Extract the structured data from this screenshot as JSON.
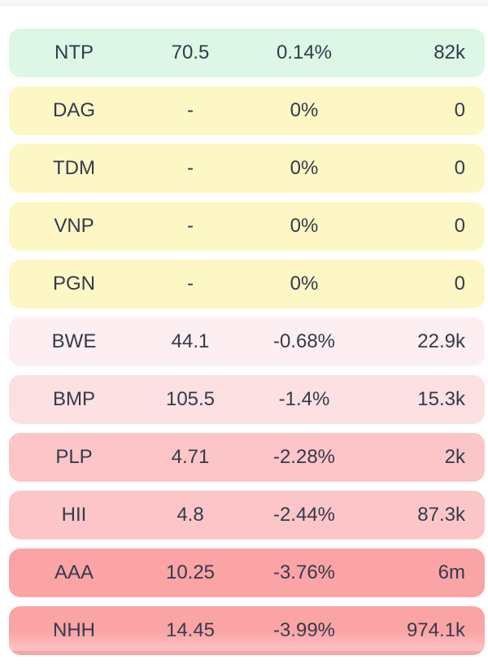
{
  "rows": [
    {
      "symbol": "NTP",
      "price": "70.5",
      "change": "0.14%",
      "volume": "82k",
      "color": "#dcf7e6"
    },
    {
      "symbol": "DAG",
      "price": "-",
      "change": "0%",
      "volume": "0",
      "color": "#fdf7c6"
    },
    {
      "symbol": "TDM",
      "price": "-",
      "change": "0%",
      "volume": "0",
      "color": "#fdf7c6"
    },
    {
      "symbol": "VNP",
      "price": "-",
      "change": "0%",
      "volume": "0",
      "color": "#fdf7c6"
    },
    {
      "symbol": "PGN",
      "price": "-",
      "change": "0%",
      "volume": "0",
      "color": "#fdf7c6"
    },
    {
      "symbol": "BWE",
      "price": "44.1",
      "change": "-0.68%",
      "volume": "22.9k",
      "color": "#fdeff1"
    },
    {
      "symbol": "BMP",
      "price": "105.5",
      "change": "-1.4%",
      "volume": "15.3k",
      "color": "#fde0e2"
    },
    {
      "symbol": "PLP",
      "price": "4.71",
      "change": "-2.28%",
      "volume": "2k",
      "color": "#fcc6c8"
    },
    {
      "symbol": "HII",
      "price": "4.8",
      "change": "-2.44%",
      "volume": "87.3k",
      "color": "#fcc6c8"
    },
    {
      "symbol": "AAA",
      "price": "10.25",
      "change": "-3.76%",
      "volume": "6m",
      "color": "#fba4a6"
    },
    {
      "symbol": "NHH",
      "price": "14.45",
      "change": "-3.99%",
      "volume": "974.1k",
      "color": "#fba4a6"
    }
  ]
}
